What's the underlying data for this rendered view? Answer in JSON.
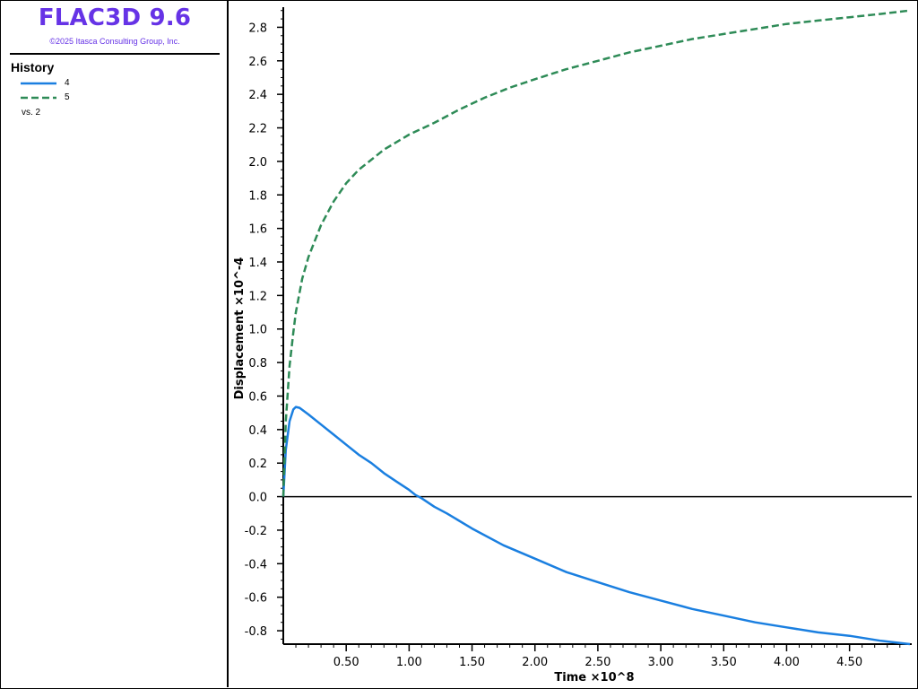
{
  "app": {
    "title": "FLAC3D 9.6",
    "copyright": "©2025 Itasca Consulting Group, Inc."
  },
  "legend": {
    "header": "History",
    "items": [
      {
        "label": "4",
        "color": "#1a7fe0",
        "style": "solid"
      },
      {
        "label": "5",
        "color": "#2e8b57",
        "style": "dashed"
      }
    ],
    "vs": "vs. 2"
  },
  "chart_data": {
    "type": "line",
    "xlabel": "Time ×10^8",
    "ylabel": "Displacement  ×10^-4",
    "xlim": [
      0,
      4.98
    ],
    "ylim": [
      -0.88,
      2.92
    ],
    "x_ticks": [
      0.5,
      1.0,
      1.5,
      2.0,
      2.5,
      3.0,
      3.5,
      4.0,
      4.5
    ],
    "x_tick_labels": [
      "0.50",
      "1.00",
      "1.50",
      "2.00",
      "2.50",
      "3.00",
      "3.50",
      "4.00",
      "4.50"
    ],
    "y_ticks": [
      -0.8,
      -0.6,
      -0.4,
      -0.2,
      0.0,
      0.2,
      0.4,
      0.6,
      0.8,
      1.0,
      1.2,
      1.4,
      1.6,
      1.8,
      2.0,
      2.2,
      2.4,
      2.6,
      2.8
    ],
    "y_tick_labels": [
      "-0.8",
      "-0.6",
      "-0.4",
      "-0.2",
      "0.0",
      "0.2",
      "0.4",
      "0.6",
      "0.8",
      "1.0",
      "1.2",
      "1.4",
      "1.6",
      "1.8",
      "2.0",
      "2.2",
      "2.4",
      "2.6",
      "2.8"
    ],
    "zero_line": true,
    "grid": false,
    "series": [
      {
        "name": "4",
        "color": "#1a7fe0",
        "style": "solid",
        "x": [
          0.0,
          0.02,
          0.05,
          0.08,
          0.1,
          0.13,
          0.2,
          0.3,
          0.4,
          0.5,
          0.6,
          0.7,
          0.8,
          0.9,
          1.0,
          1.05,
          1.1,
          1.2,
          1.3,
          1.5,
          1.75,
          2.0,
          2.25,
          2.5,
          2.75,
          3.0,
          3.25,
          3.5,
          3.75,
          4.0,
          4.25,
          4.5,
          4.75,
          4.98
        ],
        "y": [
          0.0,
          0.28,
          0.45,
          0.52,
          0.535,
          0.53,
          0.49,
          0.43,
          0.37,
          0.31,
          0.25,
          0.2,
          0.14,
          0.09,
          0.04,
          0.01,
          -0.01,
          -0.06,
          -0.1,
          -0.19,
          -0.29,
          -0.37,
          -0.45,
          -0.51,
          -0.57,
          -0.62,
          -0.67,
          -0.71,
          -0.75,
          -0.78,
          -0.81,
          -0.83,
          -0.86,
          -0.88
        ]
      },
      {
        "name": "5",
        "color": "#2e8b57",
        "style": "dashed",
        "x": [
          0.0,
          0.02,
          0.05,
          0.08,
          0.1,
          0.15,
          0.2,
          0.3,
          0.4,
          0.5,
          0.6,
          0.7,
          0.8,
          1.0,
          1.2,
          1.4,
          1.6,
          1.8,
          2.0,
          2.25,
          2.5,
          2.75,
          3.0,
          3.25,
          3.5,
          3.75,
          4.0,
          4.25,
          4.5,
          4.75,
          4.98
        ],
        "y": [
          0.0,
          0.45,
          0.78,
          0.98,
          1.1,
          1.3,
          1.43,
          1.62,
          1.76,
          1.87,
          1.95,
          2.01,
          2.07,
          2.16,
          2.23,
          2.31,
          2.38,
          2.44,
          2.49,
          2.55,
          2.6,
          2.65,
          2.69,
          2.73,
          2.76,
          2.79,
          2.82,
          2.84,
          2.86,
          2.88,
          2.9
        ]
      }
    ]
  }
}
